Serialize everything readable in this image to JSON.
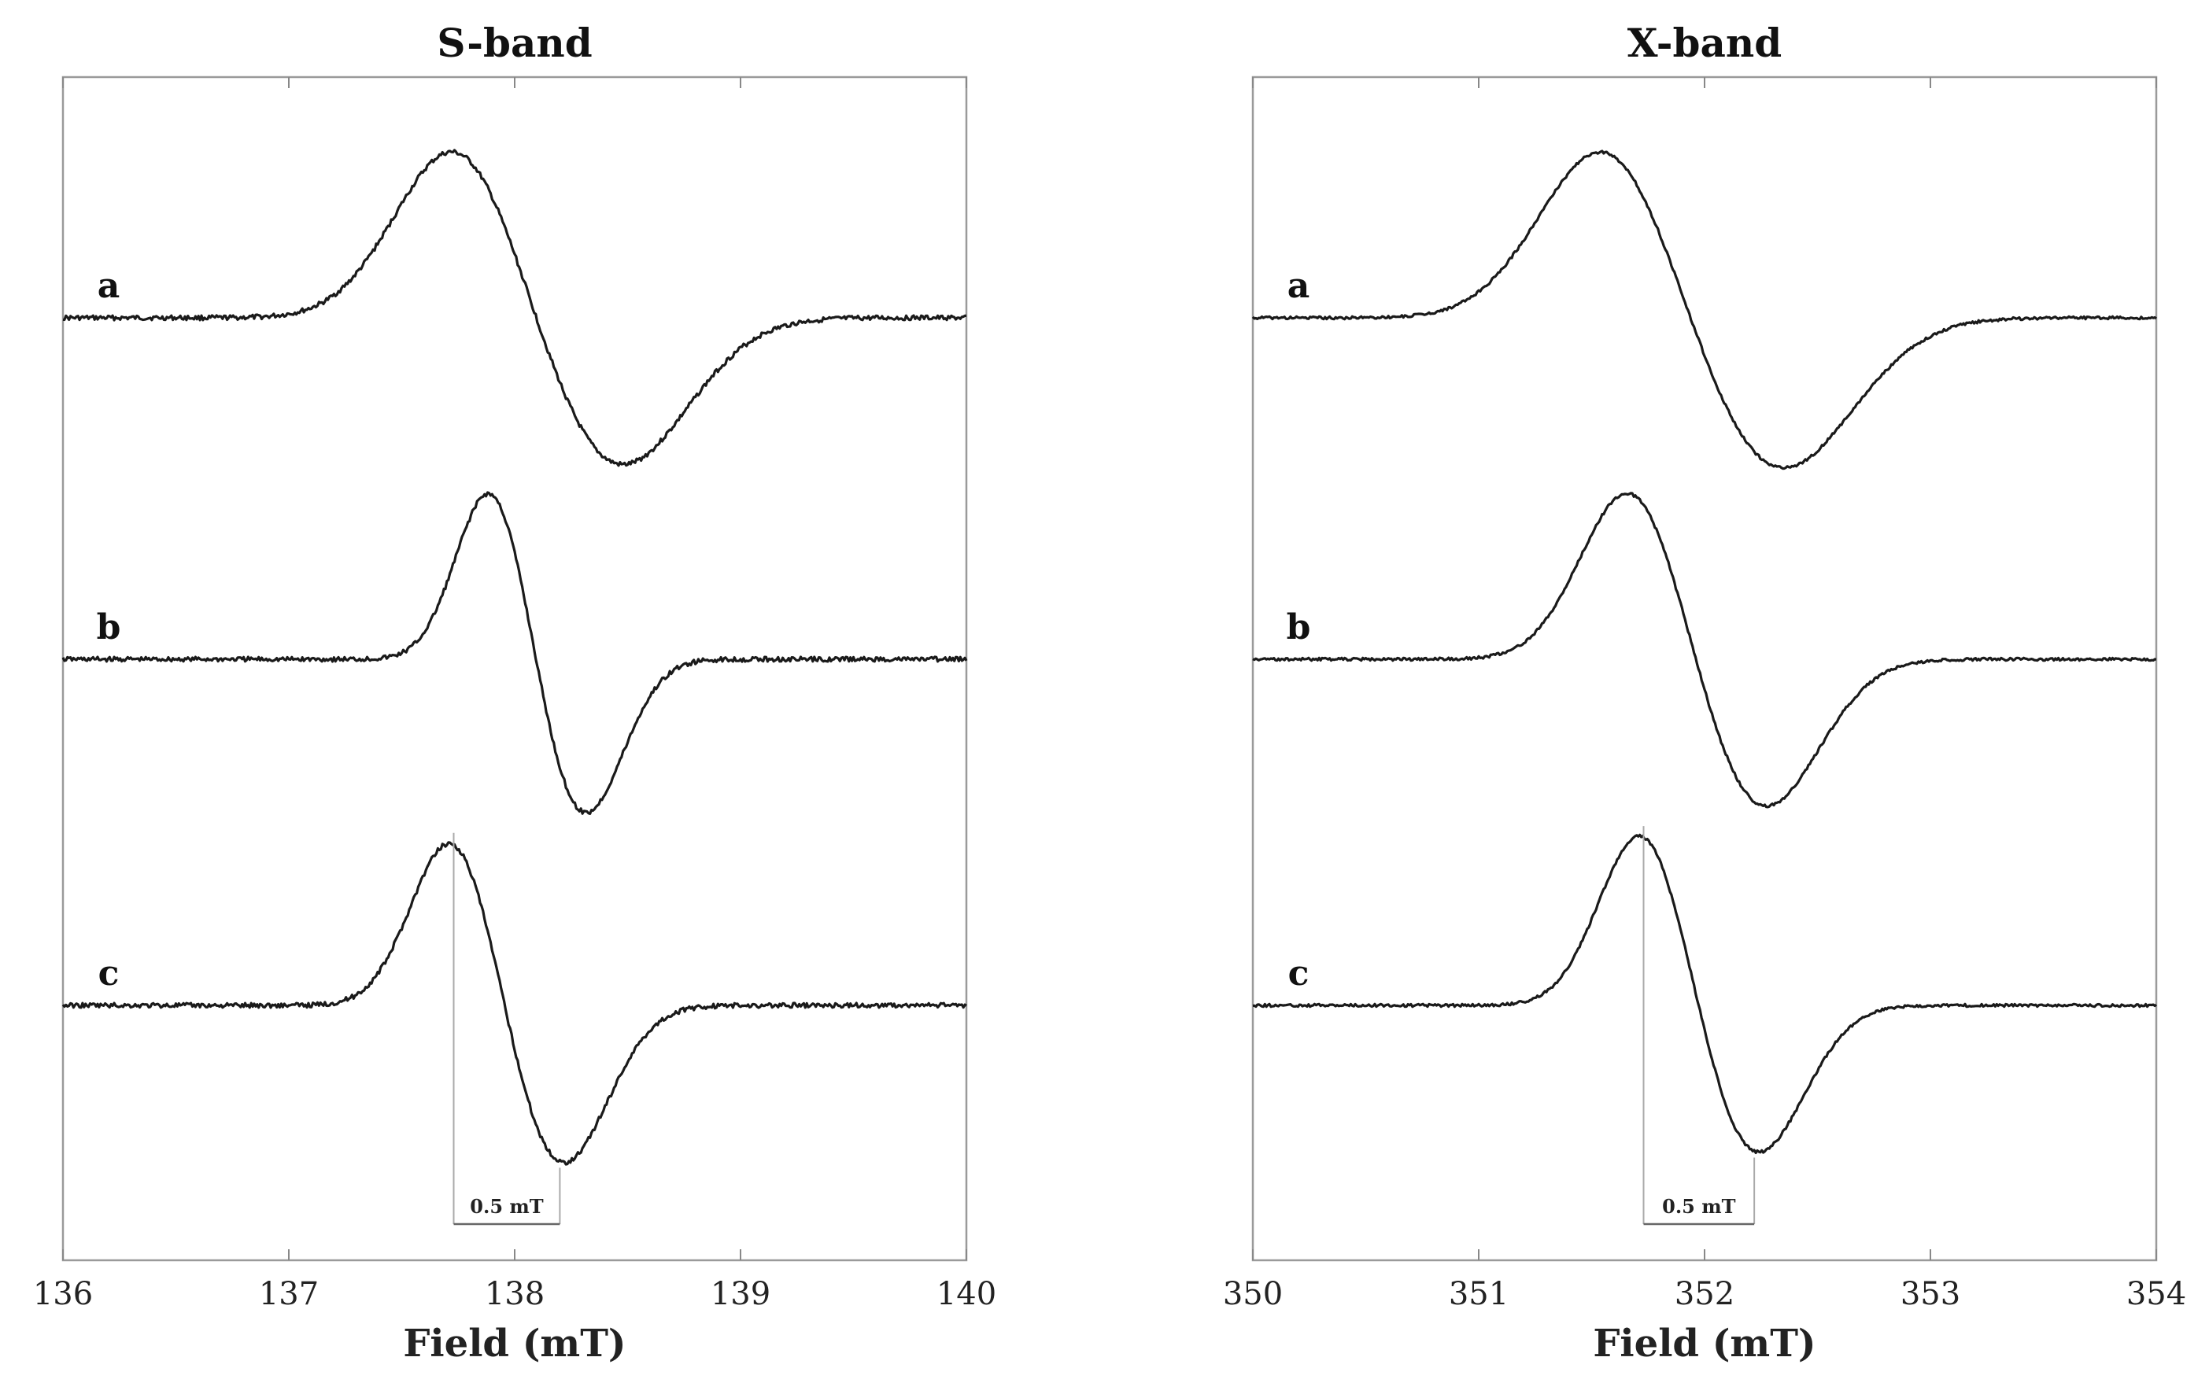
{
  "chart_data": [
    {
      "type": "line",
      "title": "S-band",
      "xlabel": "Field (mT)",
      "ylabel": "",
      "xlim": [
        136,
        140
      ],
      "xticks": [
        136,
        137,
        138,
        139,
        140
      ],
      "grid": false,
      "series": [
        {
          "name": "a",
          "baseline": 0.0,
          "peak_x": 137.75,
          "peak_amplitude": 0.52,
          "trough_x": 138.45,
          "trough_amplitude": -0.45
        },
        {
          "name": "b",
          "baseline": -1.0,
          "peak_x": 137.9,
          "peak_amplitude": 0.52,
          "trough_x": 138.3,
          "trough_amplitude": -0.47
        },
        {
          "name": "c",
          "baseline": -2.0,
          "peak_x": 137.73,
          "peak_amplitude": 0.51,
          "trough_x": 138.2,
          "trough_amplitude": -0.48
        }
      ],
      "annotation": {
        "text": "0.5 mT",
        "from_x": 137.73,
        "to_x": 138.2,
        "series": "c"
      }
    },
    {
      "type": "line",
      "title": "X-band",
      "xlabel": "Field (mT)",
      "ylabel": "",
      "xlim": [
        350,
        354
      ],
      "xticks": [
        350,
        351,
        352,
        353,
        354
      ],
      "grid": false,
      "series": [
        {
          "name": "a",
          "baseline": 0.0,
          "peak_x": 351.57,
          "peak_amplitude": 0.52,
          "trough_x": 352.32,
          "trough_amplitude": -0.46
        },
        {
          "name": "b",
          "baseline": -1.0,
          "peak_x": 351.68,
          "peak_amplitude": 0.52,
          "trough_x": 352.25,
          "trough_amplitude": -0.45
        },
        {
          "name": "c",
          "baseline": -2.0,
          "peak_x": 351.73,
          "peak_amplitude": 0.53,
          "trough_x": 352.22,
          "trough_amplitude": -0.45
        }
      ],
      "annotation": {
        "text": "0.5 mT",
        "from_x": 351.73,
        "to_x": 352.22,
        "series": "c"
      }
    }
  ]
}
